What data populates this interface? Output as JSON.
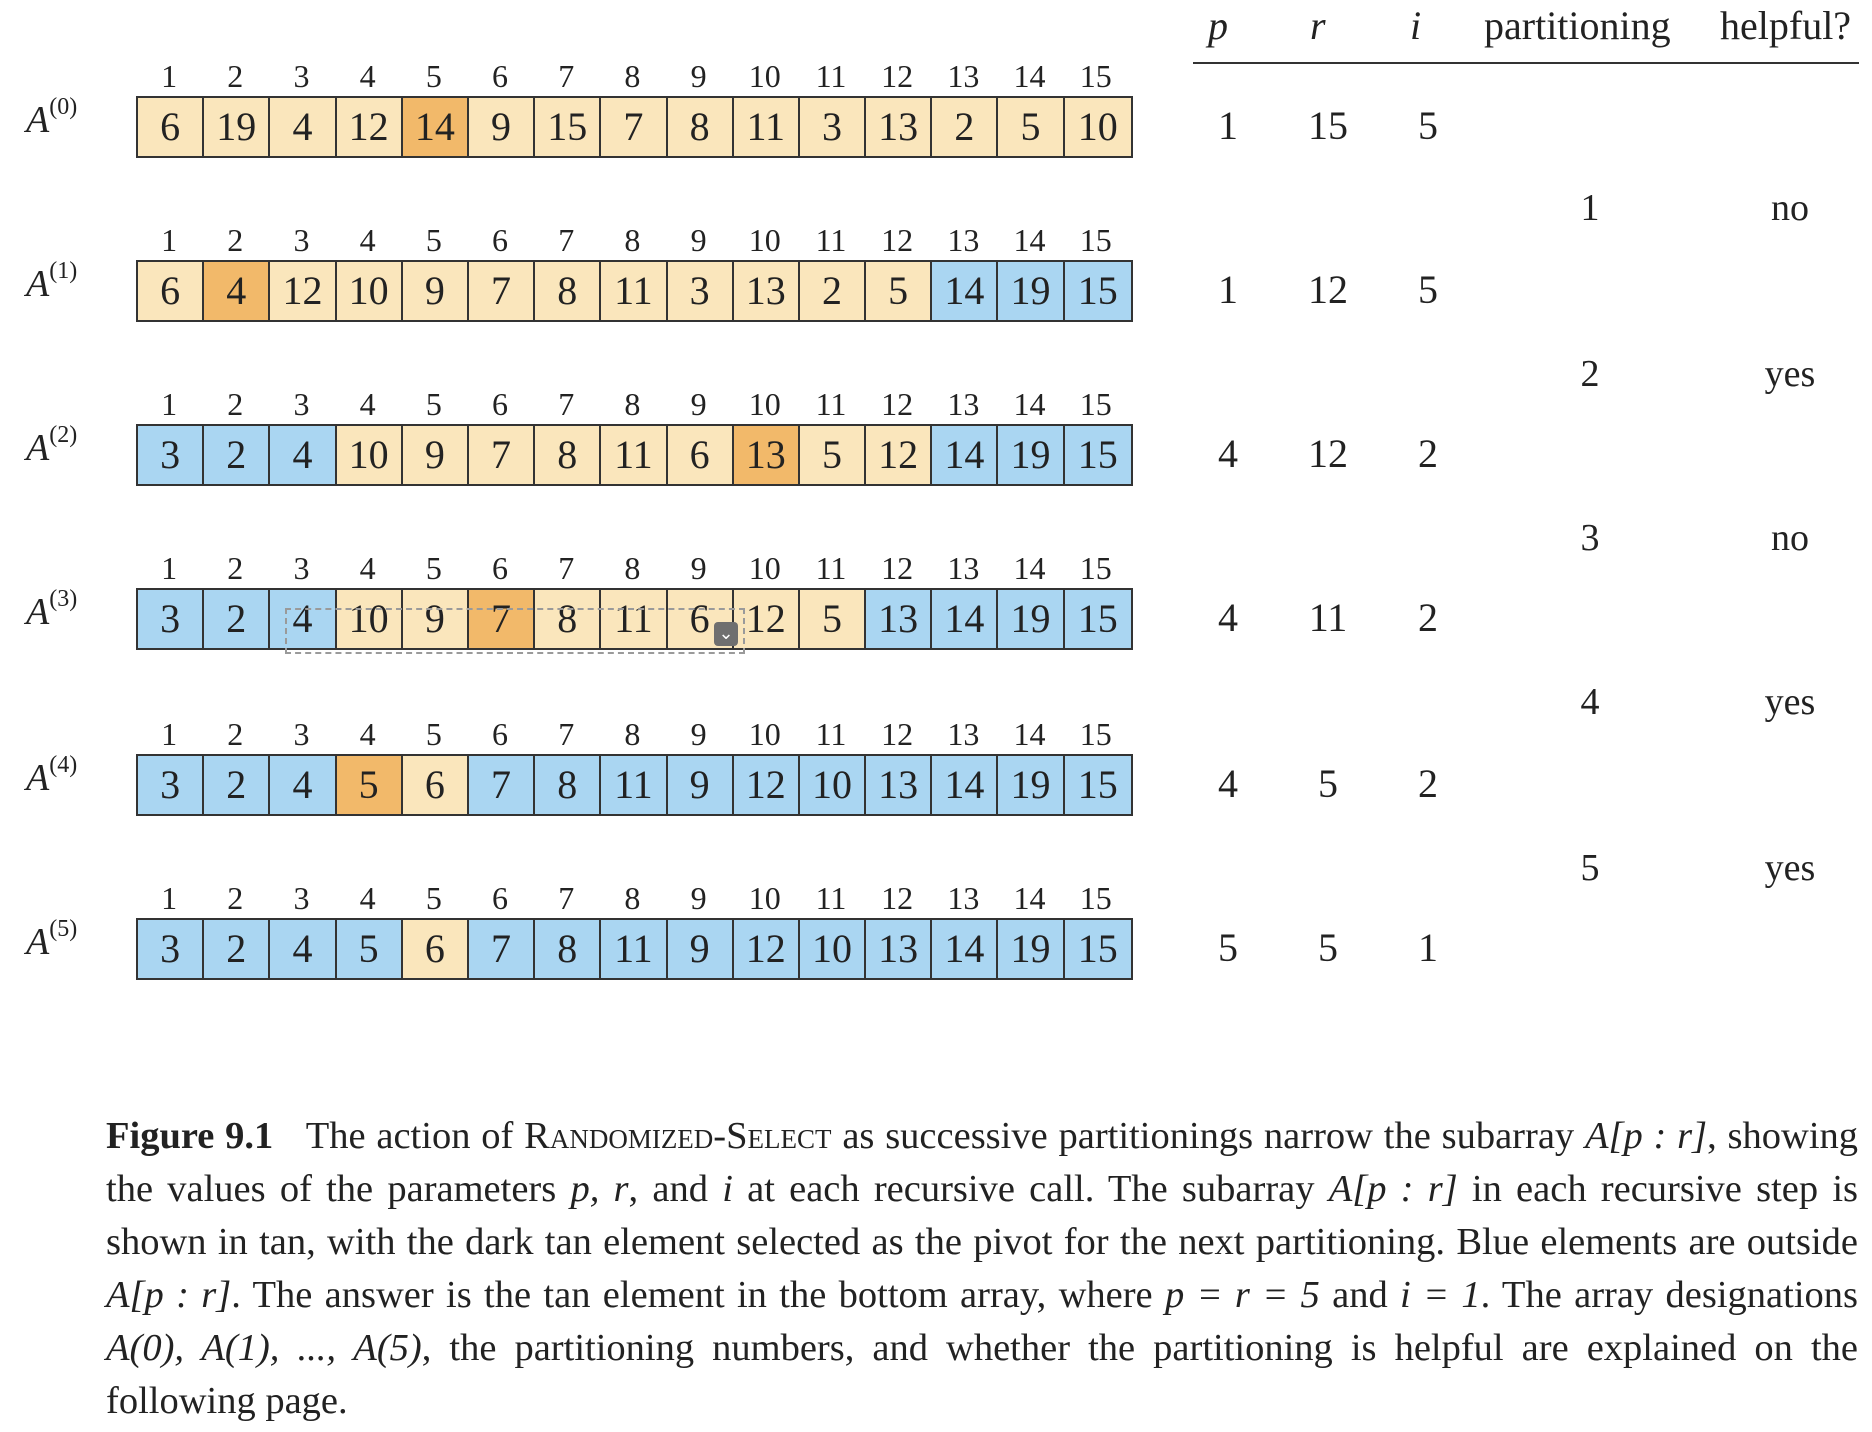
{
  "header": {
    "p": "p",
    "r": "r",
    "i": "i",
    "partitioning": "partitioning",
    "helpful": "helpful?"
  },
  "indices": [
    "1",
    "2",
    "3",
    "4",
    "5",
    "6",
    "7",
    "8",
    "9",
    "10",
    "11",
    "12",
    "13",
    "14",
    "15"
  ],
  "arrays": [
    {
      "label": "A",
      "sup": "(0)",
      "values": [
        "6",
        "19",
        "4",
        "12",
        "14",
        "9",
        "15",
        "7",
        "8",
        "11",
        "3",
        "13",
        "2",
        "5",
        "10"
      ],
      "colors": [
        "tan",
        "tan",
        "tan",
        "tan",
        "pivot",
        "tan",
        "tan",
        "tan",
        "tan",
        "tan",
        "tan",
        "tan",
        "tan",
        "tan",
        "tan"
      ],
      "p": "1",
      "r": "15",
      "i": "5"
    },
    {
      "label": "A",
      "sup": "(1)",
      "values": [
        "6",
        "4",
        "12",
        "10",
        "9",
        "7",
        "8",
        "11",
        "3",
        "13",
        "2",
        "5",
        "14",
        "19",
        "15"
      ],
      "colors": [
        "tan",
        "pivot",
        "tan",
        "tan",
        "tan",
        "tan",
        "tan",
        "tan",
        "tan",
        "tan",
        "tan",
        "tan",
        "blue",
        "blue",
        "blue"
      ],
      "p": "1",
      "r": "12",
      "i": "5"
    },
    {
      "label": "A",
      "sup": "(2)",
      "values": [
        "3",
        "2",
        "4",
        "10",
        "9",
        "7",
        "8",
        "11",
        "6",
        "13",
        "5",
        "12",
        "14",
        "19",
        "15"
      ],
      "colors": [
        "blue",
        "blue",
        "blue",
        "tan",
        "tan",
        "tan",
        "tan",
        "tan",
        "tan",
        "pivot",
        "tan",
        "tan",
        "blue",
        "blue",
        "blue"
      ],
      "p": "4",
      "r": "12",
      "i": "2"
    },
    {
      "label": "A",
      "sup": "(3)",
      "values": [
        "3",
        "2",
        "4",
        "10",
        "9",
        "7",
        "8",
        "11",
        "6",
        "12",
        "5",
        "13",
        "14",
        "19",
        "15"
      ],
      "colors": [
        "blue",
        "blue",
        "blue",
        "tan",
        "tan",
        "pivot",
        "tan",
        "tan",
        "tan",
        "tan",
        "tan",
        "blue",
        "blue",
        "blue",
        "blue"
      ],
      "p": "4",
      "r": "11",
      "i": "2"
    },
    {
      "label": "A",
      "sup": "(4)",
      "values": [
        "3",
        "2",
        "4",
        "5",
        "6",
        "7",
        "8",
        "11",
        "9",
        "12",
        "10",
        "13",
        "14",
        "19",
        "15"
      ],
      "colors": [
        "blue",
        "blue",
        "blue",
        "pivot",
        "tan",
        "blue",
        "blue",
        "blue",
        "blue",
        "blue",
        "blue",
        "blue",
        "blue",
        "blue",
        "blue"
      ],
      "p": "4",
      "r": "5",
      "i": "2"
    },
    {
      "label": "A",
      "sup": "(5)",
      "values": [
        "3",
        "2",
        "4",
        "5",
        "6",
        "7",
        "8",
        "11",
        "9",
        "12",
        "10",
        "13",
        "14",
        "19",
        "15"
      ],
      "colors": [
        "blue",
        "blue",
        "blue",
        "blue",
        "tan",
        "blue",
        "blue",
        "blue",
        "blue",
        "blue",
        "blue",
        "blue",
        "blue",
        "blue",
        "blue"
      ],
      "p": "5",
      "r": "5",
      "i": "1"
    }
  ],
  "partitionings": [
    {
      "num": "1",
      "helpful": "no"
    },
    {
      "num": "2",
      "helpful": "yes"
    },
    {
      "num": "3",
      "helpful": "no"
    },
    {
      "num": "4",
      "helpful": "yes"
    },
    {
      "num": "5",
      "helpful": "yes"
    }
  ],
  "colors": {
    "tan": "#fae6bc",
    "pivot": "#f2b96a",
    "blue": "#aad6f2"
  },
  "selection_handle_icon": "chevron-down-icon",
  "caption": {
    "figure": "Figure 9.1",
    "t1": "The action of ",
    "algo": "Randomized-Select",
    "t2": " as successive partitionings narrow the subarray ",
    "sub1": "A[p : r]",
    "t3": ", showing the values of the parameters ",
    "params": "p, r",
    "t4": ", and ",
    "param_i": "i",
    "t5": " at each recursive call. The subarray ",
    "sub2": "A[p : r]",
    "t6": " in each recursive step is shown in tan, with the dark tan element selected as the pivot for the next partitioning. Blue elements are outside ",
    "sub3": "A[p : r]",
    "t7": ". The answer is the tan element in the bottom array, where ",
    "eq1": "p = r = 5",
    "t8": " and ",
    "eq2": "i = 1",
    "t9": ". The array designations ",
    "desig": "A(0), A(1), ..., A(5)",
    "t10": ", the partitioning numbers, and whether the partitioning is helpful are explained on the following page."
  }
}
